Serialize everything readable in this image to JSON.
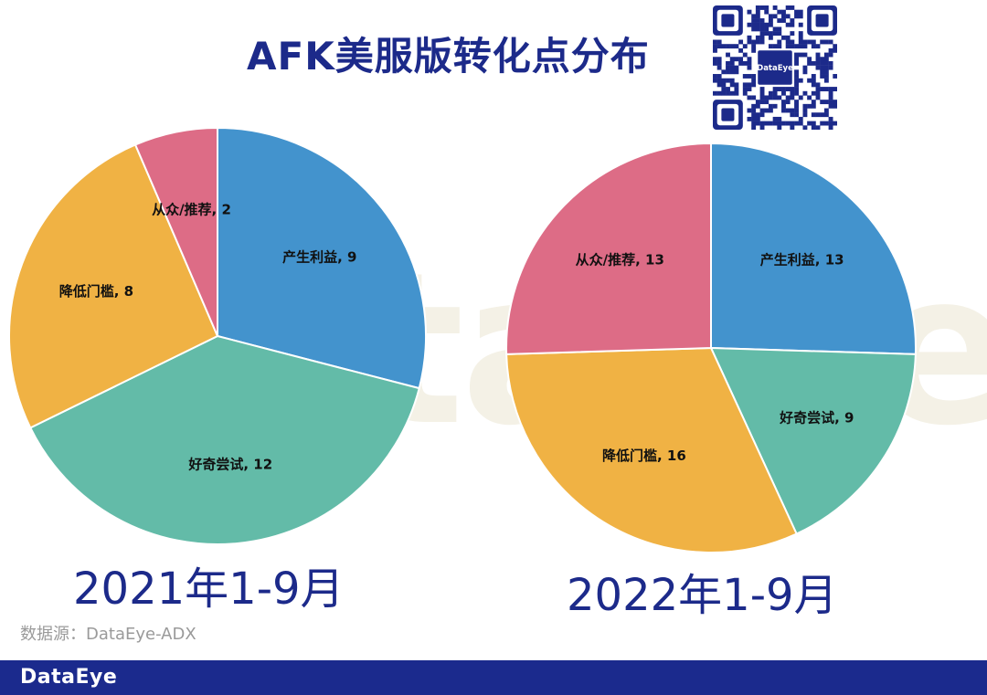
{
  "header": {
    "title": "AFK美服版转化点分布"
  },
  "qr": {
    "logo_text": "DataEye"
  },
  "watermark": {
    "text": "DataEye"
  },
  "chart_data": [
    {
      "type": "pie",
      "title": "2021年1-9月",
      "slices": [
        {
          "label": "产生利益",
          "value": 9,
          "color": "#4393cd"
        },
        {
          "label": "好奇尝试",
          "value": 12,
          "color": "#63bba8"
        },
        {
          "label": "降低门槛",
          "value": 8,
          "color": "#f0b244"
        },
        {
          "label": "从众/推荐",
          "value": 2,
          "color": "#dd6c86"
        }
      ]
    },
    {
      "type": "pie",
      "title": "2022年1-9月",
      "slices": [
        {
          "label": "产生利益",
          "value": 13,
          "color": "#4393cd"
        },
        {
          "label": "好奇尝试",
          "value": 9,
          "color": "#63bba8"
        },
        {
          "label": "降低门槛",
          "value": 16,
          "color": "#f0b244"
        },
        {
          "label": "从众/推荐",
          "value": 13,
          "color": "#dd6c86"
        }
      ]
    }
  ],
  "source_note": "数据源：DataEye-ADX",
  "footer": {
    "logo": "DataEye"
  }
}
